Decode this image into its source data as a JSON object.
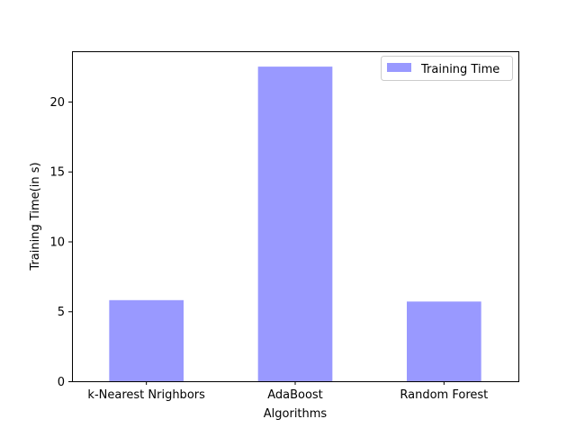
{
  "chart_data": {
    "type": "bar",
    "title": "",
    "xlabel": "Algorithms",
    "ylabel": "Training Time(in s)",
    "categories": [
      "k-Nearest Nrighbors",
      "AdaBoost",
      "Random Forest"
    ],
    "series": [
      {
        "name": "Training Time",
        "values": [
          5.8,
          22.5,
          5.7
        ],
        "color": "#9999ff"
      }
    ],
    "ylim": [
      0,
      23.6
    ],
    "yticks": [
      0,
      5,
      10,
      15,
      20
    ],
    "grid": false,
    "legend_position": "top-right"
  }
}
